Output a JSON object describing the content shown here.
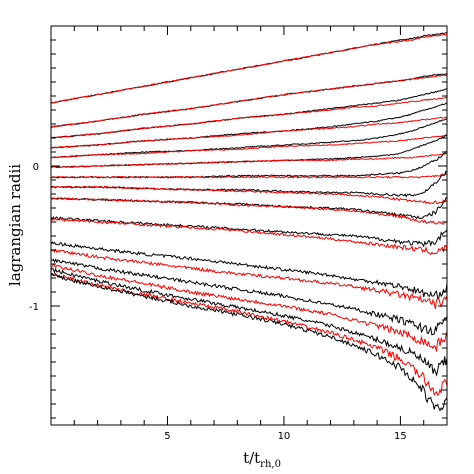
{
  "chart_data": {
    "type": "line",
    "title": "",
    "xlabel": "t/t",
    "xlabel_sub": "rh,0",
    "ylabel": "lagrangian radii",
    "xlim": [
      0,
      17
    ],
    "ylim": [
      -1.85,
      1.0
    ],
    "x_major_ticks": [
      5,
      10,
      15
    ],
    "x_major_tick_labels": [
      "5",
      "10",
      "15"
    ],
    "y_major_ticks": [
      0,
      -1
    ],
    "y_major_tick_labels": [
      "0",
      "-1"
    ],
    "grid": false,
    "legend": "none",
    "colors": {
      "series_a": "#000000",
      "series_b": "#ff0000"
    },
    "x": [
      0,
      2,
      4,
      6,
      8,
      10,
      12,
      13,
      14,
      15,
      15.5,
      16,
      16.5,
      17
    ],
    "series": [
      {
        "color": "#000000",
        "values": [
          0.45,
          0.51,
          0.57,
          0.63,
          0.69,
          0.75,
          0.81,
          0.84,
          0.87,
          0.9,
          0.91,
          0.93,
          0.94,
          0.95
        ]
      },
      {
        "color": "#ff0000",
        "values": [
          0.45,
          0.51,
          0.57,
          0.63,
          0.69,
          0.75,
          0.81,
          0.84,
          0.87,
          0.89,
          0.9,
          0.92,
          0.93,
          0.94
        ]
      },
      {
        "color": "#000000",
        "values": [
          0.28,
          0.32,
          0.37,
          0.41,
          0.46,
          0.51,
          0.55,
          0.57,
          0.59,
          0.61,
          0.62,
          0.64,
          0.65,
          0.66
        ]
      },
      {
        "color": "#ff0000",
        "values": [
          0.28,
          0.32,
          0.37,
          0.41,
          0.46,
          0.51,
          0.55,
          0.57,
          0.59,
          0.61,
          0.62,
          0.63,
          0.64,
          0.65
        ]
      },
      {
        "color": "#000000",
        "values": [
          0.2,
          0.23,
          0.27,
          0.3,
          0.34,
          0.37,
          0.41,
          0.43,
          0.45,
          0.47,
          0.49,
          0.51,
          0.53,
          0.55
        ]
      },
      {
        "color": "#ff0000",
        "values": [
          0.2,
          0.23,
          0.27,
          0.3,
          0.34,
          0.37,
          0.4,
          0.42,
          0.43,
          0.45,
          0.46,
          0.47,
          0.48,
          0.49
        ]
      },
      {
        "color": "#000000",
        "values": [
          0.13,
          0.15,
          0.18,
          0.2,
          0.23,
          0.25,
          0.28,
          0.3,
          0.32,
          0.35,
          0.37,
          0.4,
          0.42,
          0.45
        ]
      },
      {
        "color": "#ff0000",
        "values": [
          0.13,
          0.15,
          0.18,
          0.2,
          0.22,
          0.25,
          0.27,
          0.28,
          0.3,
          0.31,
          0.32,
          0.33,
          0.34,
          0.35
        ]
      },
      {
        "color": "#000000",
        "values": [
          0.06,
          0.08,
          0.1,
          0.11,
          0.13,
          0.15,
          0.17,
          0.18,
          0.2,
          0.23,
          0.25,
          0.28,
          0.31,
          0.34
        ]
      },
      {
        "color": "#ff0000",
        "values": [
          0.06,
          0.08,
          0.09,
          0.11,
          0.12,
          0.14,
          0.15,
          0.16,
          0.17,
          0.18,
          0.19,
          0.2,
          0.21,
          0.22
        ]
      },
      {
        "color": "#000000",
        "values": [
          -0.01,
          0.0,
          0.01,
          0.02,
          0.03,
          0.04,
          0.05,
          0.06,
          0.07,
          0.09,
          0.12,
          0.15,
          0.18,
          0.22
        ]
      },
      {
        "color": "#ff0000",
        "values": [
          -0.01,
          0.0,
          0.01,
          0.02,
          0.03,
          0.04,
          0.04,
          0.05,
          0.05,
          0.06,
          0.06,
          0.07,
          0.08,
          0.09
        ]
      },
      {
        "color": "#000000",
        "values": [
          -0.08,
          -0.08,
          -0.08,
          -0.08,
          -0.07,
          -0.07,
          -0.07,
          -0.07,
          -0.06,
          -0.05,
          -0.03,
          0.0,
          0.04,
          0.1
        ]
      },
      {
        "color": "#ff0000",
        "values": [
          -0.08,
          -0.08,
          -0.08,
          -0.08,
          -0.08,
          -0.08,
          -0.08,
          -0.08,
          -0.08,
          -0.08,
          -0.08,
          -0.08,
          -0.07,
          -0.06
        ]
      },
      {
        "color": "#000000",
        "values": [
          -0.15,
          -0.15,
          -0.16,
          -0.17,
          -0.17,
          -0.18,
          -0.19,
          -0.19,
          -0.2,
          -0.21,
          -0.21,
          -0.19,
          -0.12,
          -0.04
        ]
      },
      {
        "color": "#ff0000",
        "values": [
          -0.15,
          -0.15,
          -0.16,
          -0.17,
          -0.18,
          -0.19,
          -0.2,
          -0.21,
          -0.22,
          -0.24,
          -0.25,
          -0.26,
          -0.26,
          -0.25
        ]
      },
      {
        "color": "#000000",
        "values": [
          -0.23,
          -0.24,
          -0.25,
          -0.26,
          -0.27,
          -0.29,
          -0.3,
          -0.31,
          -0.33,
          -0.35,
          -0.36,
          -0.37,
          -0.33,
          -0.23
        ]
      },
      {
        "color": "#ff0000",
        "values": [
          -0.23,
          -0.24,
          -0.25,
          -0.26,
          -0.28,
          -0.29,
          -0.31,
          -0.32,
          -0.34,
          -0.36,
          -0.38,
          -0.4,
          -0.41,
          -0.4
        ]
      },
      {
        "color": "#000000",
        "values": [
          -0.37,
          -0.39,
          -0.41,
          -0.43,
          -0.45,
          -0.47,
          -0.49,
          -0.5,
          -0.52,
          -0.54,
          -0.55,
          -0.56,
          -0.54,
          -0.45
        ]
      },
      {
        "color": "#ff0000",
        "values": [
          -0.38,
          -0.4,
          -0.42,
          -0.44,
          -0.46,
          -0.49,
          -0.52,
          -0.54,
          -0.56,
          -0.58,
          -0.59,
          -0.6,
          -0.62,
          -0.58
        ]
      },
      {
        "color": "#000000",
        "values": [
          -0.55,
          -0.59,
          -0.63,
          -0.66,
          -0.7,
          -0.74,
          -0.78,
          -0.81,
          -0.83,
          -0.86,
          -0.88,
          -0.91,
          -0.93,
          -0.87
        ]
      },
      {
        "color": "#ff0000",
        "values": [
          -0.6,
          -0.65,
          -0.69,
          -0.73,
          -0.77,
          -0.8,
          -0.84,
          -0.86,
          -0.89,
          -0.92,
          -0.94,
          -0.96,
          -0.99,
          -0.95
        ]
      },
      {
        "color": "#000000",
        "values": [
          -0.67,
          -0.73,
          -0.78,
          -0.83,
          -0.88,
          -0.93,
          -0.99,
          -1.02,
          -1.06,
          -1.1,
          -1.13,
          -1.16,
          -1.18,
          -1.08
        ]
      },
      {
        "color": "#ff0000",
        "values": [
          -0.71,
          -0.78,
          -0.84,
          -0.9,
          -0.95,
          -1.0,
          -1.06,
          -1.1,
          -1.14,
          -1.19,
          -1.22,
          -1.25,
          -1.3,
          -1.2
        ]
      },
      {
        "color": "#000000",
        "values": [
          -0.74,
          -0.82,
          -0.89,
          -0.95,
          -1.01,
          -1.07,
          -1.14,
          -1.19,
          -1.24,
          -1.3,
          -1.34,
          -1.39,
          -1.48,
          -1.38
        ]
      },
      {
        "color": "#ff0000",
        "values": [
          -0.77,
          -0.85,
          -0.92,
          -0.98,
          -1.04,
          -1.11,
          -1.19,
          -1.24,
          -1.3,
          -1.38,
          -1.44,
          -1.52,
          -1.62,
          -1.55
        ]
      },
      {
        "color": "#000000",
        "values": [
          -0.78,
          -0.86,
          -0.93,
          -1.0,
          -1.06,
          -1.13,
          -1.22,
          -1.28,
          -1.35,
          -1.44,
          -1.52,
          -1.61,
          -1.74,
          -1.68
        ]
      }
    ]
  }
}
